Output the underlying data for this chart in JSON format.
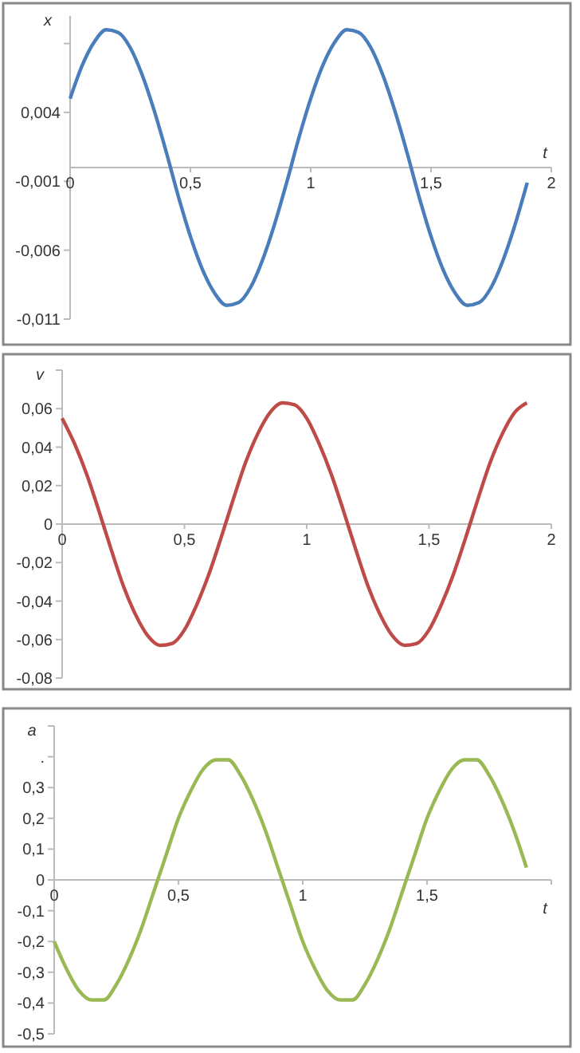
{
  "chart_data": [
    {
      "type": "line",
      "xlabel": "t",
      "ylabel": "x",
      "x": [
        0,
        0.05,
        0.1,
        0.15,
        0.2,
        0.25,
        0.3,
        0.35,
        0.4,
        0.45,
        0.5,
        0.55,
        0.6,
        0.65,
        0.7,
        0.75,
        0.8,
        0.85,
        0.9,
        0.95,
        1,
        1.05,
        1.1,
        1.15,
        1.2,
        1.25,
        1.3,
        1.35,
        1.4,
        1.45,
        1.5,
        1.55,
        1.6,
        1.65,
        1.7,
        1.75,
        1.8,
        1.85,
        1.9
      ],
      "series": [
        {
          "color": "#4a7ebb",
          "values": [
            0.005,
            0.0074,
            0.0091,
            0.01,
            0.0098,
            0.0087,
            0.0067,
            0.0041,
            0.0011,
            -0.0021,
            -0.005,
            -0.0074,
            -0.0091,
            -0.01,
            -0.0098,
            -0.0087,
            -0.0067,
            -0.0041,
            -0.0011,
            0.0021,
            0.005,
            0.0074,
            0.0091,
            0.01,
            0.0098,
            0.0087,
            0.0067,
            0.0041,
            0.0011,
            -0.0021,
            -0.005,
            -0.0074,
            -0.0091,
            -0.01,
            -0.0098,
            -0.0087,
            -0.0067,
            -0.0041,
            -0.0011
          ]
        }
      ],
      "xlim": [
        0,
        2
      ],
      "xticks": [
        0,
        {
          "value": 0.5,
          "label": "0,5"
        },
        1,
        {
          "value": 1.5,
          "label": "1,5"
        },
        2
      ],
      "ylim": [
        -0.011,
        0.011
      ],
      "yticks": [
        {
          "value": -0.011,
          "label": "-0,011"
        },
        {
          "value": -0.006,
          "label": "-0,006"
        },
        {
          "value": -0.001,
          "label": "-0,001"
        },
        {
          "value": 0.004,
          "label": "0,004"
        },
        {
          "value": 0.009,
          "label": null
        }
      ]
    },
    {
      "type": "line",
      "ylabel": "v",
      "x": [
        0,
        0.05,
        0.1,
        0.15,
        0.2,
        0.25,
        0.3,
        0.35,
        0.4,
        0.45,
        0.5,
        0.55,
        0.6,
        0.65,
        0.7,
        0.75,
        0.8,
        0.85,
        0.9,
        0.95,
        1,
        1.05,
        1.1,
        1.15,
        1.2,
        1.25,
        1.3,
        1.35,
        1.4,
        1.45,
        1.5,
        1.55,
        1.6,
        1.65,
        1.7,
        1.75,
        1.8,
        1.85,
        1.9
      ],
      "series": [
        {
          "color": "#be4b48",
          "values": [
            0.055,
            0.042,
            0.026,
            0.007,
            -0.013,
            -0.032,
            -0.047,
            -0.058,
            -0.063,
            -0.062,
            -0.055,
            -0.042,
            -0.026,
            -0.007,
            0.013,
            0.032,
            0.047,
            0.058,
            0.063,
            0.062,
            0.055,
            0.042,
            0.026,
            0.007,
            -0.013,
            -0.032,
            -0.047,
            -0.058,
            -0.063,
            -0.062,
            -0.055,
            -0.042,
            -0.026,
            -0.007,
            0.013,
            0.032,
            0.047,
            0.058,
            0.063
          ]
        }
      ],
      "xlim": [
        0,
        2
      ],
      "xticks": [
        0,
        {
          "value": 0.5,
          "label": "0,5"
        },
        1,
        {
          "value": 1.5,
          "label": "1,5"
        },
        2
      ],
      "ylim": [
        -0.08,
        0.08
      ],
      "yticks": [
        {
          "value": -0.08,
          "label": "-0,08"
        },
        {
          "value": -0.06,
          "label": "-0,06"
        },
        {
          "value": -0.04,
          "label": "-0,04"
        },
        {
          "value": -0.02,
          "label": "-0,02"
        },
        0,
        {
          "value": 0.02,
          "label": "0,02"
        },
        {
          "value": 0.04,
          "label": "0,04"
        },
        {
          "value": 0.06,
          "label": "0,06"
        },
        {
          "value": 0.08,
          "label": null
        }
      ]
    },
    {
      "type": "line",
      "xlabel": "t",
      "ylabel": "a",
      "x": [
        0,
        0.05,
        0.1,
        0.15,
        0.2,
        0.25,
        0.3,
        0.35,
        0.4,
        0.45,
        0.5,
        0.55,
        0.6,
        0.65,
        0.7,
        0.75,
        0.8,
        0.85,
        0.9,
        0.95,
        1,
        1.05,
        1.1,
        1.15,
        1.2,
        1.25,
        1.3,
        1.35,
        1.4,
        1.45,
        1.5,
        1.55,
        1.6,
        1.65,
        1.7,
        1.75,
        1.8,
        1.85,
        1.9
      ],
      "series": [
        {
          "color": "#98b954",
          "values": [
            -0.2,
            -0.29,
            -0.36,
            -0.39,
            -0.39,
            -0.34,
            -0.26,
            -0.16,
            -0.04,
            0.08,
            0.2,
            0.29,
            0.36,
            0.39,
            0.39,
            0.34,
            0.26,
            0.16,
            0.04,
            -0.08,
            -0.2,
            -0.29,
            -0.36,
            -0.39,
            -0.39,
            -0.34,
            -0.26,
            -0.16,
            -0.04,
            0.08,
            0.2,
            0.29,
            0.36,
            0.39,
            0.39,
            0.34,
            0.26,
            0.16,
            0.04
          ]
        }
      ],
      "xlim": [
        0,
        2
      ],
      "xticks": [
        0,
        {
          "value": 0.5,
          "label": "0,5"
        },
        1,
        {
          "value": 1.5,
          "label": "1,5"
        },
        {
          "value": 2,
          "label": null
        }
      ],
      "ylim": [
        -0.5,
        0.5
      ],
      "yticks": [
        {
          "value": -0.5,
          "label": "-0,5"
        },
        {
          "value": -0.4,
          "label": "-0,4"
        },
        {
          "value": -0.3,
          "label": "-0,3"
        },
        {
          "value": -0.2,
          "label": "-0,2"
        },
        {
          "value": -0.1,
          "label": "-0,1"
        },
        0,
        {
          "value": 0.1,
          "label": "0,1"
        },
        {
          "value": 0.2,
          "label": "0,2"
        },
        {
          "value": 0.3,
          "label": "0,3"
        },
        {
          "value": 0.4,
          "label": "."
        },
        {
          "value": 0.5,
          "label": null
        }
      ]
    }
  ]
}
